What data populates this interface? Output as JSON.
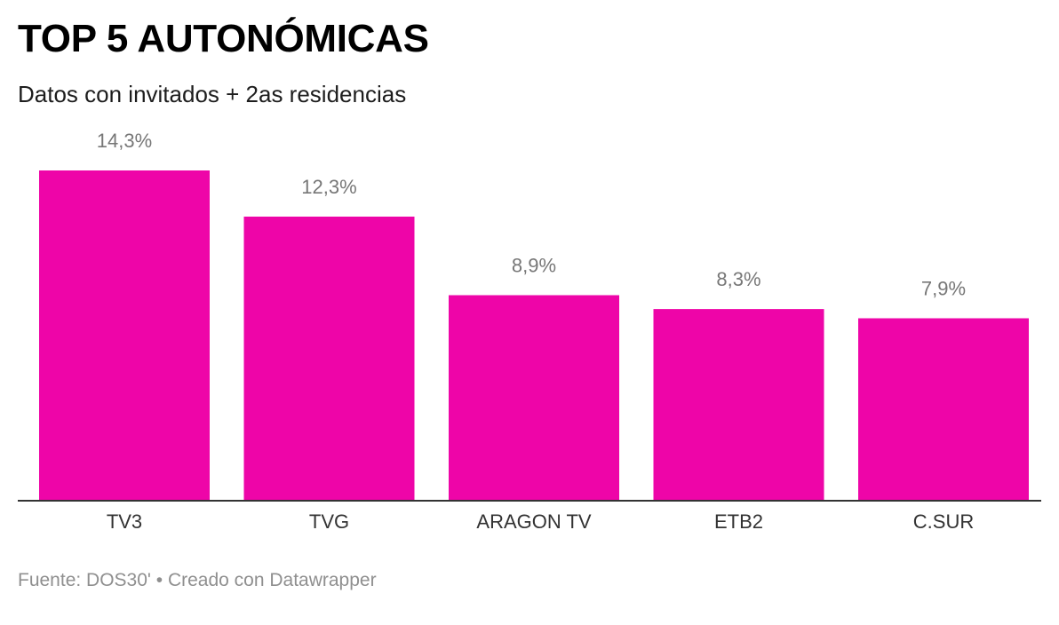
{
  "header": {
    "title": "TOP 5 AUTONÓMICAS",
    "subtitle": "Datos con invitados + 2as residencias"
  },
  "footer": {
    "source": "Fuente: DOS30' • Creado con Datawrapper"
  },
  "colors": {
    "bar": "#ee05a8",
    "baseline": "#333333"
  },
  "chart_data": {
    "type": "bar",
    "categories": [
      "TV3",
      "TVG",
      "ARAGON TV",
      "ETB2",
      "C.SUR"
    ],
    "values": [
      14.3,
      12.3,
      8.9,
      8.3,
      7.9
    ],
    "value_labels": [
      "14,3%",
      "12,3%",
      "8,9%",
      "8,3%",
      "7,9%"
    ],
    "title": "TOP 5 AUTONÓMICAS",
    "subtitle": "Datos con invitados + 2as residencias",
    "xlabel": "",
    "ylabel": "",
    "ylim": [
      0,
      14.3
    ],
    "grid": false,
    "legend": "none"
  }
}
